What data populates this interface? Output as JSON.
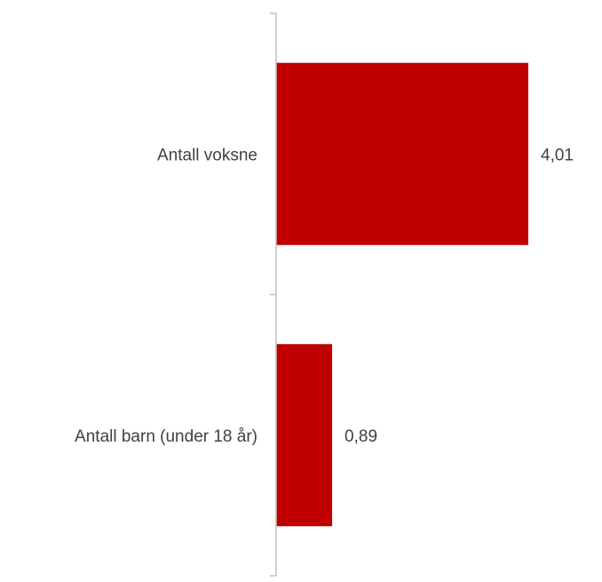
{
  "chart_data": {
    "type": "bar",
    "orientation": "horizontal",
    "categories": [
      "Antall voksne",
      "Antall barn (under 18 år)"
    ],
    "values": [
      4.01,
      0.89
    ],
    "data_labels": [
      "4,01",
      "0,89"
    ],
    "title": "",
    "xlabel": "",
    "ylabel": "",
    "xlim": [
      0,
      4.5
    ],
    "grid": false,
    "legend": "none",
    "colors": {
      "bar": "#c00000",
      "axis": "#bfbfbf",
      "text": "#404040"
    }
  }
}
